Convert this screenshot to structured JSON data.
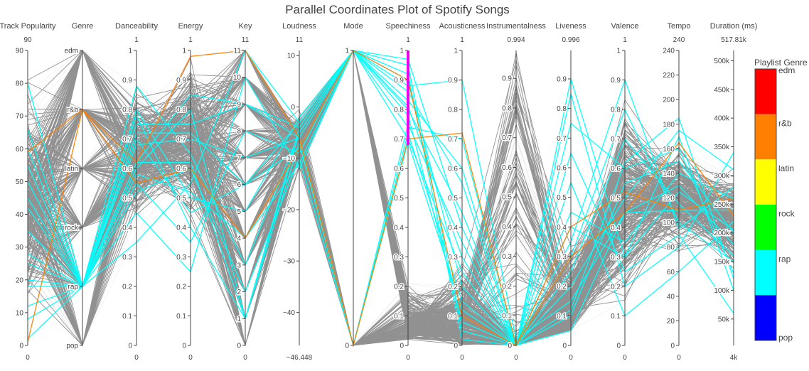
{
  "chart_data": {
    "type": "parallel_coordinates",
    "title": "Parallel Coordinates Plot of Spotify Songs",
    "dimensions": [
      {
        "label": "Track Popularity",
        "range": [
          0,
          90
        ],
        "range_labels": [
          "0",
          "90"
        ],
        "ticks": [
          0,
          10,
          20,
          30,
          40,
          50,
          60,
          70,
          80,
          90
        ],
        "tick_labels": [
          "0",
          "10",
          "20",
          "30",
          "40",
          "50",
          "60",
          "70",
          "80",
          "90"
        ]
      },
      {
        "label": "Genre",
        "range": [
          0,
          5
        ],
        "range_labels": [
          "",
          ""
        ],
        "ticks": [
          0,
          1,
          2,
          3,
          4,
          5
        ],
        "tick_labels": [
          "pop",
          "rap",
          "rock",
          "latin",
          "r&b",
          "edm"
        ]
      },
      {
        "label": "Danceability",
        "range": [
          0,
          1
        ],
        "range_labels": [
          "0",
          "1"
        ],
        "ticks": [
          0,
          0.1,
          0.2,
          0.3,
          0.4,
          0.5,
          0.6,
          0.7,
          0.8,
          0.9,
          1
        ],
        "tick_labels": [
          "0",
          "0.1",
          "0.2",
          "0.3",
          "0.4",
          "0.5",
          "0.6",
          "0.7",
          "0.8",
          "0.9",
          "1"
        ]
      },
      {
        "label": "Energy",
        "range": [
          0,
          1
        ],
        "range_labels": [
          "0",
          "1"
        ],
        "ticks": [
          0,
          0.1,
          0.2,
          0.3,
          0.4,
          0.5,
          0.6,
          0.7,
          0.8,
          0.9,
          1
        ],
        "tick_labels": [
          "0",
          "0.1",
          "0.2",
          "0.3",
          "0.4",
          "0.5",
          "0.6",
          "0.7",
          "0.8",
          "0.9",
          "1"
        ]
      },
      {
        "label": "Key",
        "range": [
          0,
          11
        ],
        "range_labels": [
          "0",
          "11"
        ],
        "ticks": [
          0,
          1,
          2,
          3,
          4,
          5,
          6,
          7,
          8,
          9,
          10,
          11
        ],
        "tick_labels": [
          "0",
          "1",
          "2",
          "3",
          "4",
          "5",
          "6",
          "7",
          "8",
          "9",
          "10",
          "11"
        ]
      },
      {
        "label": "Loudness",
        "range": [
          -46.448,
          11
        ],
        "range_labels": [
          "−46.448",
          "11"
        ],
        "ticks": [
          -40,
          -30,
          -20,
          -10,
          0,
          10
        ],
        "tick_labels": [
          "−40",
          "−30",
          "−20",
          "−10",
          "0",
          "10"
        ]
      },
      {
        "label": "Mode",
        "range": [
          0,
          1
        ],
        "range_labels": [
          "",
          ""
        ],
        "ticks": [
          0,
          1
        ],
        "tick_labels": [
          "0",
          "1"
        ]
      },
      {
        "label": "Speechiness",
        "range": [
          0,
          1
        ],
        "range_labels": [
          "0",
          "1"
        ],
        "ticks": [
          0,
          0.1,
          0.2,
          0.3,
          0.4,
          0.5,
          0.6,
          0.7,
          0.8,
          0.9,
          1
        ],
        "tick_labels": [
          "0",
          "0.1",
          "0.2",
          "0.3",
          "0.4",
          "0.5",
          "0.6",
          "0.7",
          "0.8",
          "0.9",
          "1"
        ],
        "constraint_range": [
          0.68,
          1
        ]
      },
      {
        "label": "Acousticness",
        "range": [
          0,
          1
        ],
        "range_labels": [
          "0",
          "1"
        ],
        "ticks": [
          0,
          0.1,
          0.2,
          0.3,
          0.4,
          0.5,
          0.6,
          0.7,
          0.8,
          0.9,
          1
        ],
        "tick_labels": [
          "0",
          "0.1",
          "0.2",
          "0.3",
          "0.4",
          "0.5",
          "0.6",
          "0.7",
          "0.8",
          "0.9",
          "1"
        ]
      },
      {
        "label": "Instrumentalness",
        "range": [
          0,
          0.994
        ],
        "range_labels": [
          "0",
          "0.994"
        ],
        "ticks": [
          0,
          0.1,
          0.2,
          0.3,
          0.4,
          0.5,
          0.6,
          0.7,
          0.8,
          0.9
        ],
        "tick_labels": [
          "0",
          "0.1",
          "0.2",
          "0.3",
          "0.4",
          "0.5",
          "0.6",
          "0.7",
          "0.8",
          "0.9"
        ]
      },
      {
        "label": "Liveness",
        "range": [
          0,
          0.996
        ],
        "range_labels": [
          "0",
          "0.996"
        ],
        "ticks": [
          0,
          0.1,
          0.2,
          0.3,
          0.4,
          0.5,
          0.6,
          0.7,
          0.8,
          0.9
        ],
        "tick_labels": [
          "0",
          "0.1",
          "0.2",
          "0.3",
          "0.4",
          "0.5",
          "0.6",
          "0.7",
          "0.8",
          "0.9"
        ]
      },
      {
        "label": "Valence",
        "range": [
          0,
          1
        ],
        "range_labels": [
          "0",
          "1"
        ],
        "ticks": [
          0,
          0.1,
          0.2,
          0.3,
          0.4,
          0.5,
          0.6,
          0.7,
          0.8,
          0.9,
          1
        ],
        "tick_labels": [
          "0",
          "0.1",
          "0.2",
          "0.3",
          "0.4",
          "0.5",
          "0.6",
          "0.7",
          "0.8",
          "0.9",
          "1"
        ]
      },
      {
        "label": "Tempo",
        "range": [
          0,
          240
        ],
        "range_labels": [
          "0",
          "240"
        ],
        "ticks": [
          0,
          20,
          40,
          60,
          80,
          100,
          120,
          140,
          160,
          180,
          200,
          220,
          240
        ],
        "tick_labels": [
          "0",
          "20",
          "40",
          "60",
          "80",
          "100",
          "120",
          "140",
          "160",
          "180",
          "200",
          "220",
          "240"
        ]
      },
      {
        "label": "Duration (ms)",
        "range": [
          4000,
          517810
        ],
        "range_labels": [
          "4k",
          "517.81k"
        ],
        "ticks": [
          50000,
          100000,
          150000,
          200000,
          250000,
          300000,
          350000,
          400000,
          450000,
          500000
        ],
        "tick_labels": [
          "50k",
          "100k",
          "150k",
          "200k",
          "250k",
          "300k",
          "350k",
          "400k",
          "450k",
          "500k"
        ]
      }
    ],
    "colorscale": {
      "title": "Playlist Genre",
      "entries": [
        {
          "label": "edm",
          "color": "#ff0000"
        },
        {
          "label": "r&b",
          "color": "#ff8000"
        },
        {
          "label": "latin",
          "color": "#ffff00"
        },
        {
          "label": "rock",
          "color": "#00ff00"
        },
        {
          "label": "rap",
          "color": "#00ffff"
        },
        {
          "label": "pop",
          "color": "#0000ff"
        }
      ]
    },
    "colors": {
      "filtered": "#555555",
      "background_line": "#dcdcdc",
      "constraint": "#ee00ee"
    },
    "highlighted_songs": [
      {
        "genre": "rap",
        "values": [
          80,
          1,
          0.62,
          0.62,
          1,
          -4,
          1,
          0.95,
          0.05,
          0.0,
          0.1,
          0.55,
          150,
          200000
        ]
      },
      {
        "genre": "rap",
        "values": [
          60,
          1,
          0.7,
          0.45,
          6,
          -8,
          1,
          0.8,
          0.45,
          0.0,
          0.9,
          0.3,
          170,
          100000
        ]
      },
      {
        "genre": "rap",
        "values": [
          55,
          1,
          0.75,
          0.75,
          9,
          -6,
          0,
          0.72,
          0.15,
          0.0,
          0.35,
          0.9,
          95,
          280000
        ]
      },
      {
        "genre": "rap",
        "values": [
          50,
          1,
          0.55,
          0.35,
          8,
          -9,
          1,
          0.88,
          0.9,
          0.02,
          0.15,
          0.45,
          130,
          180000
        ]
      },
      {
        "genre": "rap",
        "values": [
          42,
          1,
          0.35,
          0.55,
          11,
          -3,
          1,
          0.7,
          0.25,
          0.0,
          0.85,
          0.2,
          80,
          340000
        ]
      },
      {
        "genre": "rap",
        "values": [
          35,
          1,
          0.88,
          0.65,
          3,
          -5,
          1,
          0.92,
          0.02,
          0.0,
          0.12,
          0.62,
          185,
          120000
        ]
      },
      {
        "genre": "rap",
        "values": [
          28,
          1,
          0.6,
          0.8,
          1,
          -7,
          0,
          0.75,
          0.35,
          0.0,
          0.55,
          0.1,
          60,
          220000
        ]
      },
      {
        "genre": "rap",
        "values": [
          25,
          1,
          0.45,
          0.25,
          10,
          -12,
          1,
          0.83,
          0.6,
          0.0,
          0.25,
          0.7,
          115,
          160000
        ]
      },
      {
        "genre": "rap",
        "values": [
          20,
          1,
          0.8,
          0.5,
          5,
          -2,
          1,
          0.78,
          0.08,
          0.0,
          0.45,
          0.35,
          140,
          260000
        ]
      },
      {
        "genre": "rap",
        "values": [
          18,
          1,
          0.68,
          0.7,
          7,
          -6,
          1,
          0.97,
          0.4,
          0.0,
          0.3,
          0.8,
          100,
          150000
        ]
      },
      {
        "genre": "rap",
        "values": [
          12,
          1,
          0.52,
          0.6,
          2,
          -10,
          0,
          0.69,
          0.12,
          0.0,
          0.2,
          0.5,
          175,
          310000
        ]
      },
      {
        "genre": "rap",
        "values": [
          8,
          1,
          0.78,
          0.4,
          1,
          -5,
          1,
          0.86,
          0.55,
          0.0,
          0.65,
          0.25,
          90,
          60000
        ]
      },
      {
        "genre": "rap",
        "values": [
          2,
          1,
          0.62,
          0.85,
          9,
          -4,
          1,
          0.74,
          0.7,
          0.0,
          0.05,
          0.45,
          110,
          240000
        ]
      },
      {
        "genre": "rap",
        "values": [
          45,
          1,
          0.58,
          0.52,
          4,
          -11,
          1,
          0.9,
          0.2,
          0.0,
          0.75,
          0.6,
          160,
          130000
        ]
      },
      {
        "genre": "rap",
        "values": [
          66,
          1,
          0.72,
          0.72,
          6,
          -3,
          1,
          0.81,
          0.3,
          0.0,
          0.4,
          0.3,
          125,
          205000
        ]
      },
      {
        "genre": "r&b",
        "values": [
          59,
          4,
          0.62,
          0.98,
          11,
          -6,
          0,
          0.7,
          0.72,
          0.0,
          0.3,
          0.45,
          165,
          230000
        ]
      },
      {
        "genre": "r&b",
        "values": [
          1,
          4,
          0.55,
          0.6,
          4,
          -8,
          1,
          0.9,
          0.1,
          0.0,
          0.4,
          0.52,
          110,
          260000
        ]
      }
    ]
  }
}
